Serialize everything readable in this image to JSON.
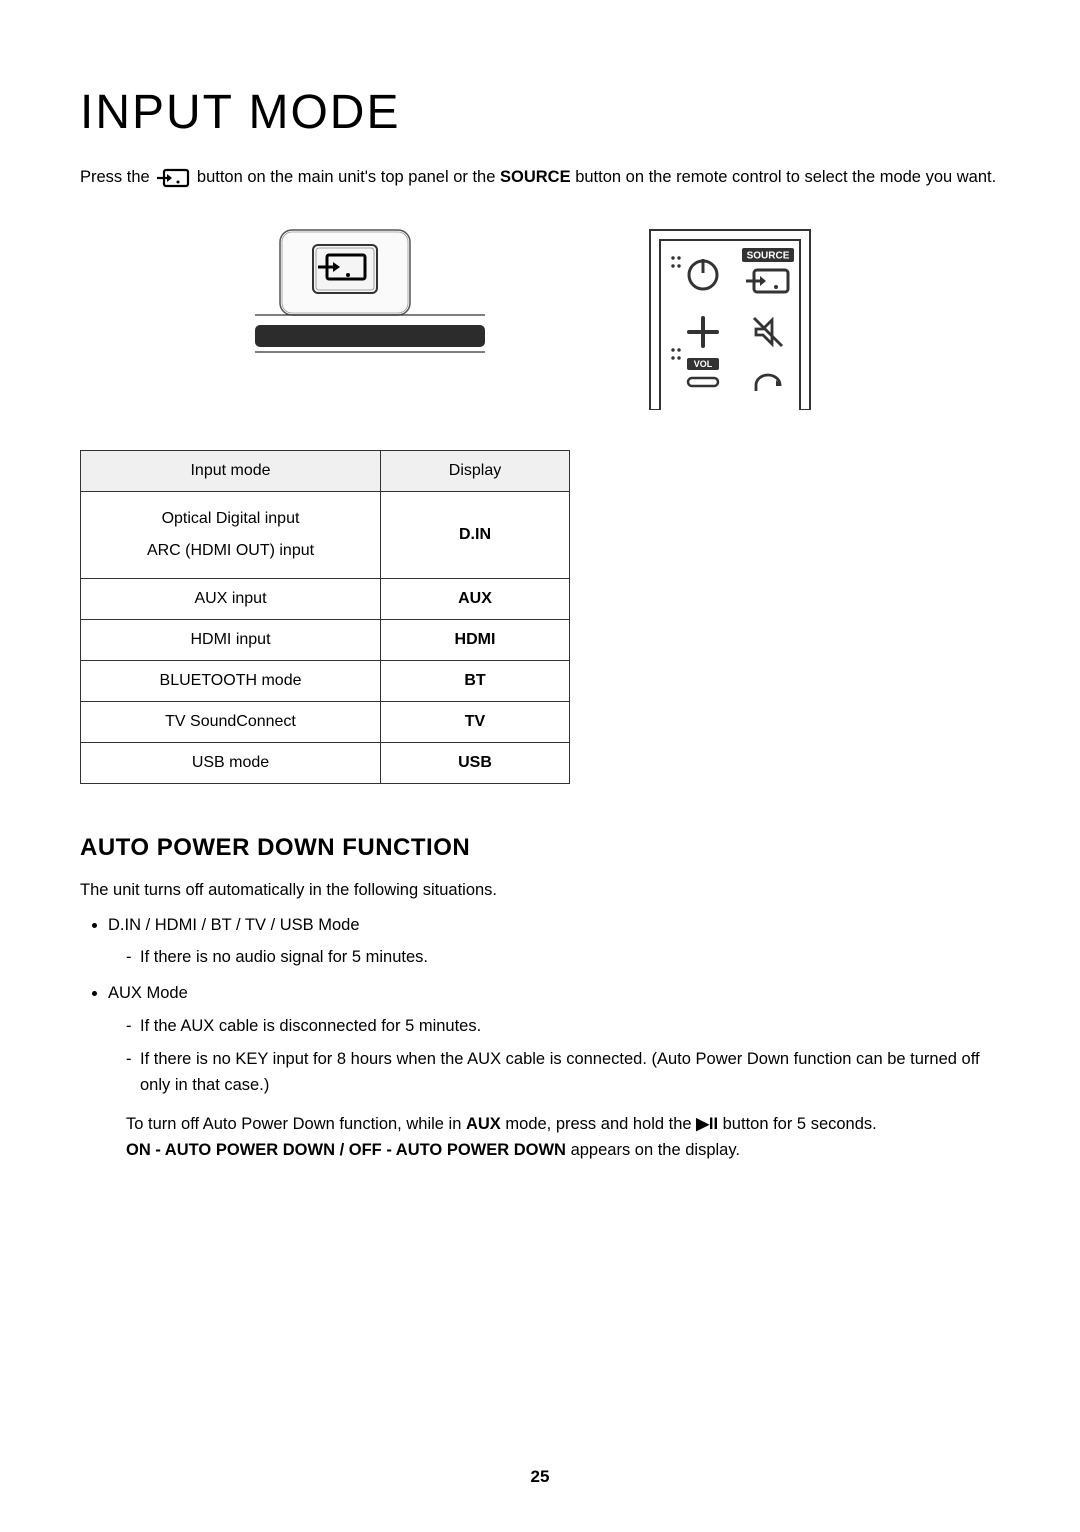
{
  "title": "INPUT MODE",
  "intro": {
    "prefix": "Press the ",
    "mid": " button on the main unit's top panel or the ",
    "source_word": "SOURCE",
    "suffix": " button on the remote control to select the mode you want."
  },
  "remote_labels": {
    "source": "SOURCE",
    "vol": "VOL"
  },
  "table": {
    "headers": [
      "Input mode",
      "Display"
    ],
    "rows": [
      {
        "mode": "Optical Digital input\nARC (HDMI OUT) input",
        "display": "D.IN",
        "multiline": true
      },
      {
        "mode": "AUX input",
        "display": "AUX",
        "multiline": false
      },
      {
        "mode": "HDMI input",
        "display": "HDMI",
        "multiline": false
      },
      {
        "mode": "BLUETOOTH mode",
        "display": "BT",
        "multiline": false
      },
      {
        "mode": "TV SoundConnect",
        "display": "TV",
        "multiline": false
      },
      {
        "mode": "USB mode",
        "display": "USB",
        "multiline": false
      }
    ]
  },
  "section2": {
    "heading": "AUTO POWER DOWN FUNCTION",
    "intro": "The unit turns off automatically in the following situations.",
    "items": [
      {
        "label": "D.IN / HDMI / BT / TV / USB Mode",
        "subitems": [
          "If there is no audio signal for 5 minutes."
        ]
      },
      {
        "label": "AUX Mode",
        "subitems": [
          "If the AUX cable is disconnected for 5 minutes.",
          "If there is no KEY input for 8 hours when the AUX cable is connected. (Auto Power Down function can be turned off only in that case.)"
        ]
      }
    ],
    "closing": {
      "p1_prefix": "To turn off Auto Power Down function, while in ",
      "p1_aux": "AUX",
      "p1_mid": " mode, press and hold the ",
      "p1_btn": "▶II",
      "p1_suffix": " button for 5 seconds.",
      "p2_bold": "ON - AUTO POWER DOWN / OFF - AUTO POWER DOWN",
      "p2_suffix": " appears on the display."
    }
  },
  "page_number": "25"
}
